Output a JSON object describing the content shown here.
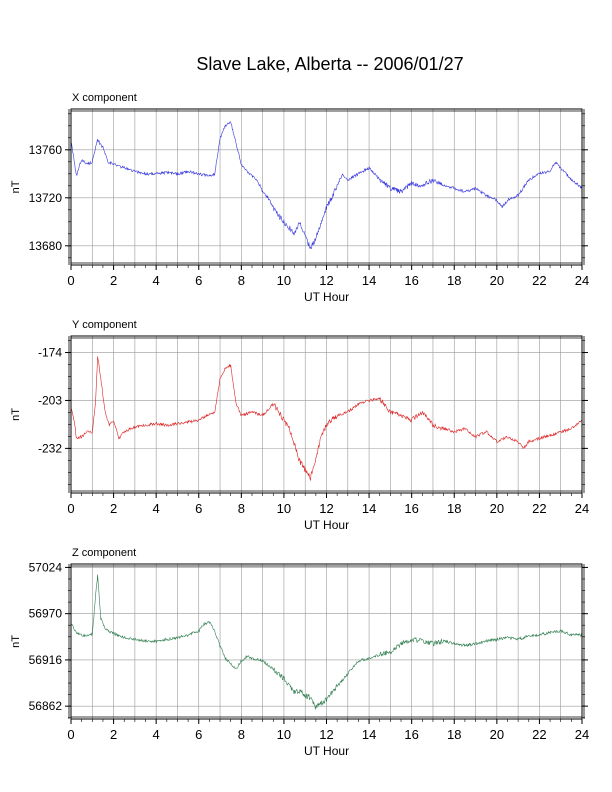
{
  "page": {
    "title": "Slave Lake, Alberta -- 2006/01/27"
  },
  "chart_data": [
    {
      "type": "line",
      "title": "X component",
      "xlabel": "UT Hour",
      "ylabel": "nT",
      "xlim": [
        0,
        24
      ],
      "ylim": [
        13664,
        13794
      ],
      "x_ticks": [
        0,
        2,
        4,
        6,
        8,
        10,
        12,
        14,
        16,
        18,
        20,
        22,
        24
      ],
      "x_tick_labels": [
        "0",
        "2",
        "4",
        "6",
        "8",
        "10",
        "12",
        "14",
        "16",
        "18",
        "20",
        "22",
        "24"
      ],
      "y_ticks": [
        13680,
        13720,
        13760
      ],
      "y_tick_labels": [
        "13680",
        "13720",
        "13760"
      ],
      "grid": true,
      "color": "#3333dd",
      "series": [
        {
          "x": [
            0,
            0.25,
            0.5,
            0.75,
            1.0,
            1.25,
            1.5,
            1.75,
            2.0,
            2.5,
            3.0,
            3.5,
            4.0,
            4.5,
            5.0,
            5.5,
            6.0,
            6.5,
            6.75,
            7.0,
            7.25,
            7.5,
            7.75,
            8.0,
            8.25,
            8.5,
            8.75,
            9.0,
            9.25,
            9.5,
            9.75,
            10.0,
            10.25,
            10.5,
            10.75,
            11.0,
            11.25,
            11.5,
            11.75,
            12.0,
            12.25,
            12.5,
            12.75,
            13.0,
            13.5,
            14.0,
            14.5,
            15.0,
            15.5,
            16.0,
            16.5,
            17.0,
            17.5,
            18.0,
            18.5,
            19.0,
            19.5,
            20.0,
            20.25,
            20.5,
            21.0,
            21.5,
            22.0,
            22.5,
            22.75,
            23.0,
            23.5,
            24.0
          ],
          "y": [
            13768,
            13738,
            13752,
            13748,
            13750,
            13768,
            13762,
            13750,
            13748,
            13745,
            13742,
            13740,
            13740,
            13741,
            13740,
            13742,
            13740,
            13738,
            13740,
            13770,
            13780,
            13783,
            13765,
            13748,
            13742,
            13738,
            13735,
            13725,
            13720,
            13712,
            13705,
            13700,
            13695,
            13690,
            13700,
            13688,
            13678,
            13686,
            13700,
            13712,
            13720,
            13730,
            13740,
            13735,
            13740,
            13745,
            13735,
            13728,
            13725,
            13732,
            13730,
            13735,
            13730,
            13728,
            13725,
            13728,
            13722,
            13718,
            13712,
            13718,
            13722,
            13735,
            13740,
            13742,
            13750,
            13745,
            13735,
            13728
          ]
        }
      ]
    },
    {
      "type": "line",
      "title": "Y component",
      "xlabel": "UT Hour",
      "ylabel": "nT",
      "xlim": [
        0,
        24
      ],
      "ylim": [
        -259,
        -164
      ],
      "x_ticks": [
        0,
        2,
        4,
        6,
        8,
        10,
        12,
        14,
        16,
        18,
        20,
        22,
        24
      ],
      "x_tick_labels": [
        "0",
        "2",
        "4",
        "6",
        "8",
        "10",
        "12",
        "14",
        "16",
        "18",
        "20",
        "22",
        "24"
      ],
      "y_ticks": [
        -232,
        -203,
        -174
      ],
      "y_tick_labels": [
        "-232",
        "-203",
        "-174"
      ],
      "grid": true,
      "color": "#dd2222",
      "series": [
        {
          "x": [
            0,
            0.15,
            0.25,
            0.5,
            0.75,
            1.0,
            1.15,
            1.25,
            1.4,
            1.6,
            1.8,
            2.0,
            2.25,
            2.5,
            3.0,
            3.5,
            4.0,
            4.5,
            5.0,
            5.5,
            6.0,
            6.5,
            6.75,
            7.0,
            7.25,
            7.5,
            7.75,
            8.0,
            8.5,
            9.0,
            9.5,
            10.0,
            10.25,
            10.5,
            10.75,
            11.0,
            11.25,
            11.5,
            11.75,
            12.0,
            12.5,
            13.0,
            13.5,
            14.0,
            14.5,
            15.0,
            15.5,
            16.0,
            16.5,
            17.0,
            17.5,
            18.0,
            18.5,
            19.0,
            19.5,
            20.0,
            20.5,
            21.0,
            21.25,
            21.5,
            22.0,
            22.5,
            23.0,
            23.5,
            24.0
          ],
          "y": [
            -208,
            -215,
            -226,
            -225,
            -222,
            -222,
            -205,
            -176,
            -190,
            -210,
            -218,
            -215,
            -226,
            -222,
            -219,
            -218,
            -217,
            -218,
            -217,
            -216,
            -215,
            -211,
            -210,
            -190,
            -183,
            -182,
            -205,
            -212,
            -210,
            -212,
            -205,
            -215,
            -220,
            -230,
            -240,
            -245,
            -250,
            -238,
            -225,
            -218,
            -212,
            -210,
            -205,
            -203,
            -202,
            -210,
            -212,
            -215,
            -210,
            -218,
            -220,
            -222,
            -220,
            -225,
            -222,
            -228,
            -225,
            -228,
            -232,
            -228,
            -226,
            -224,
            -222,
            -220,
            -215
          ]
        }
      ]
    },
    {
      "type": "line",
      "title": "Z component",
      "xlabel": "UT Hour",
      "ylabel": "nT",
      "xlim": [
        0,
        24
      ],
      "ylim": [
        56847,
        57028
      ],
      "x_ticks": [
        0,
        2,
        4,
        6,
        8,
        10,
        12,
        14,
        16,
        18,
        20,
        22,
        24
      ],
      "x_tick_labels": [
        "0",
        "2",
        "4",
        "6",
        "8",
        "10",
        "12",
        "14",
        "16",
        "18",
        "20",
        "22",
        "24"
      ],
      "y_ticks": [
        56862,
        56916,
        56970,
        57024
      ],
      "y_tick_labels": [
        "56862",
        "56916",
        "56970",
        "57024"
      ],
      "grid": true,
      "color": "#2e7d4f",
      "series": [
        {
          "x": [
            0,
            0.25,
            0.5,
            0.75,
            1.0,
            1.15,
            1.25,
            1.4,
            1.6,
            2.0,
            2.5,
            3.0,
            3.5,
            4.0,
            4.5,
            5.0,
            5.5,
            6.0,
            6.25,
            6.5,
            6.75,
            7.0,
            7.25,
            7.5,
            7.75,
            8.0,
            8.25,
            8.5,
            9.0,
            9.5,
            10.0,
            10.25,
            10.5,
            10.75,
            11.0,
            11.25,
            11.5,
            11.75,
            12.0,
            12.5,
            13.0,
            13.5,
            14.0,
            14.5,
            15.0,
            15.5,
            16.0,
            16.5,
            17.0,
            17.5,
            18.0,
            18.5,
            19.0,
            19.5,
            20.0,
            20.5,
            21.0,
            21.5,
            22.0,
            22.5,
            23.0,
            23.5,
            24.0
          ],
          "y": [
            56960,
            56948,
            56945,
            56944,
            56946,
            56990,
            57015,
            56965,
            56952,
            56947,
            56942,
            56940,
            56938,
            56938,
            56940,
            56942,
            56945,
            56950,
            56958,
            56960,
            56950,
            56932,
            56918,
            56912,
            56905,
            56915,
            56920,
            56918,
            56915,
            56905,
            56895,
            56885,
            56878,
            56880,
            56875,
            56872,
            56860,
            56865,
            56870,
            56885,
            56900,
            56915,
            56918,
            56922,
            56925,
            56935,
            56940,
            56938,
            56935,
            56938,
            56935,
            56933,
            56935,
            56938,
            56940,
            56942,
            56940,
            56944,
            56945,
            56948,
            56950,
            56945,
            56945
          ]
        }
      ]
    }
  ]
}
